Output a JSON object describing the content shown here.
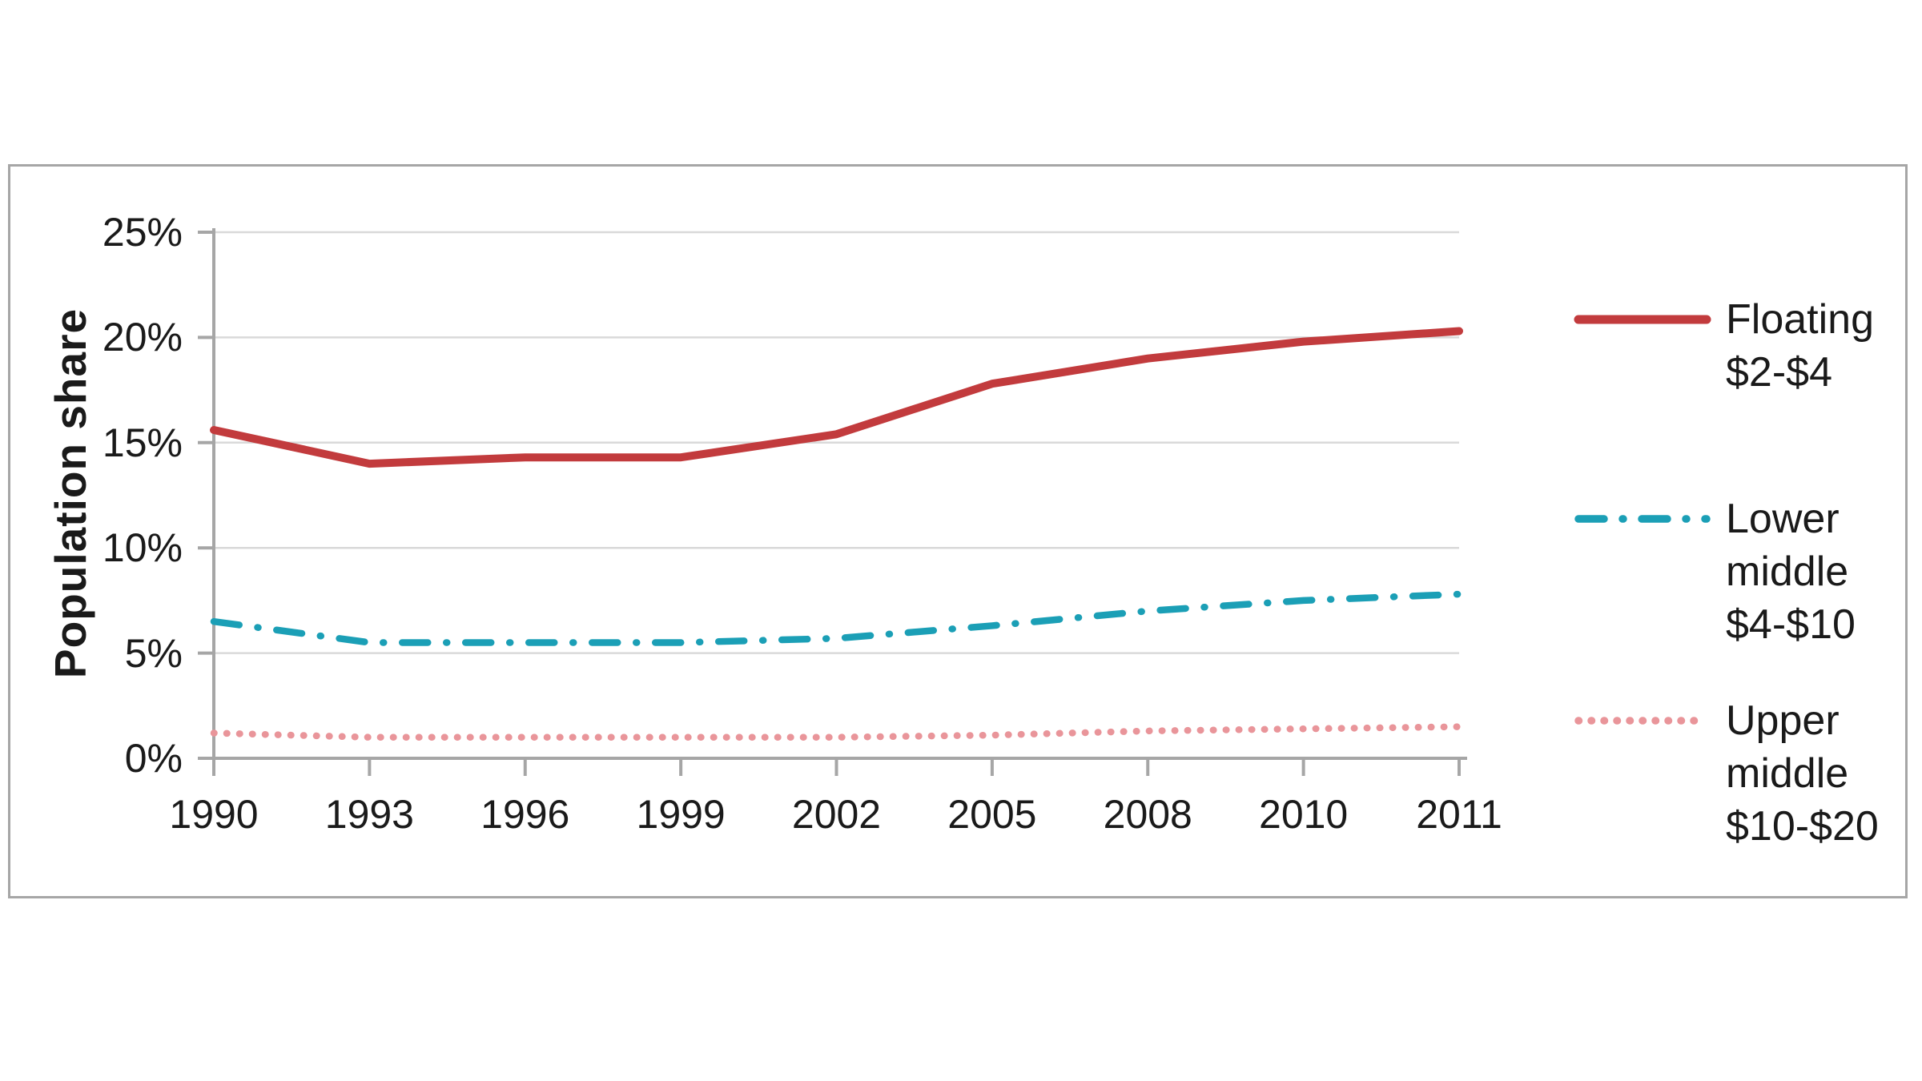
{
  "chart_data": {
    "type": "line",
    "title": "",
    "xlabel": "",
    "ylabel": "Population share",
    "categories": [
      "1990",
      "1993",
      "1996",
      "1999",
      "2002",
      "2005",
      "2008",
      "2010",
      "2011"
    ],
    "y_tick_labels": [
      "0%",
      "5%",
      "10%",
      "15%",
      "20%",
      "25%"
    ],
    "y_tick_values": [
      0,
      5,
      10,
      15,
      20,
      25
    ],
    "ylim": [
      0,
      25
    ],
    "grid": "horizontal",
    "legend_position": "right",
    "series": [
      {
        "name": "Floating $2-$4",
        "label_lines": "Floating\n$2-$4",
        "color": "#c23b3d",
        "line_style": "solid",
        "values": [
          15.6,
          14.0,
          14.3,
          14.3,
          15.4,
          17.8,
          19.0,
          19.8,
          20.3
        ]
      },
      {
        "name": "Lower middle $4-$10",
        "label_lines": "Lower\nmiddle\n$4-$10",
        "color": "#1b9fb6",
        "line_style": "dash-dot",
        "values": [
          6.5,
          5.5,
          5.5,
          5.5,
          5.7,
          6.3,
          7.0,
          7.5,
          7.8
        ]
      },
      {
        "name": "Upper middle $10-$20",
        "label_lines": "Upper\nmiddle\n$10-$20",
        "color": "#e9959a",
        "line_style": "dotted",
        "values": [
          1.2,
          1.0,
          1.0,
          1.0,
          1.0,
          1.1,
          1.3,
          1.4,
          1.5
        ]
      }
    ]
  },
  "colors": {
    "gridline": "#d9d9d9",
    "axis": "#a6a6a6",
    "frame_border": "#a6a6a6",
    "text": "#1a1a1a"
  }
}
